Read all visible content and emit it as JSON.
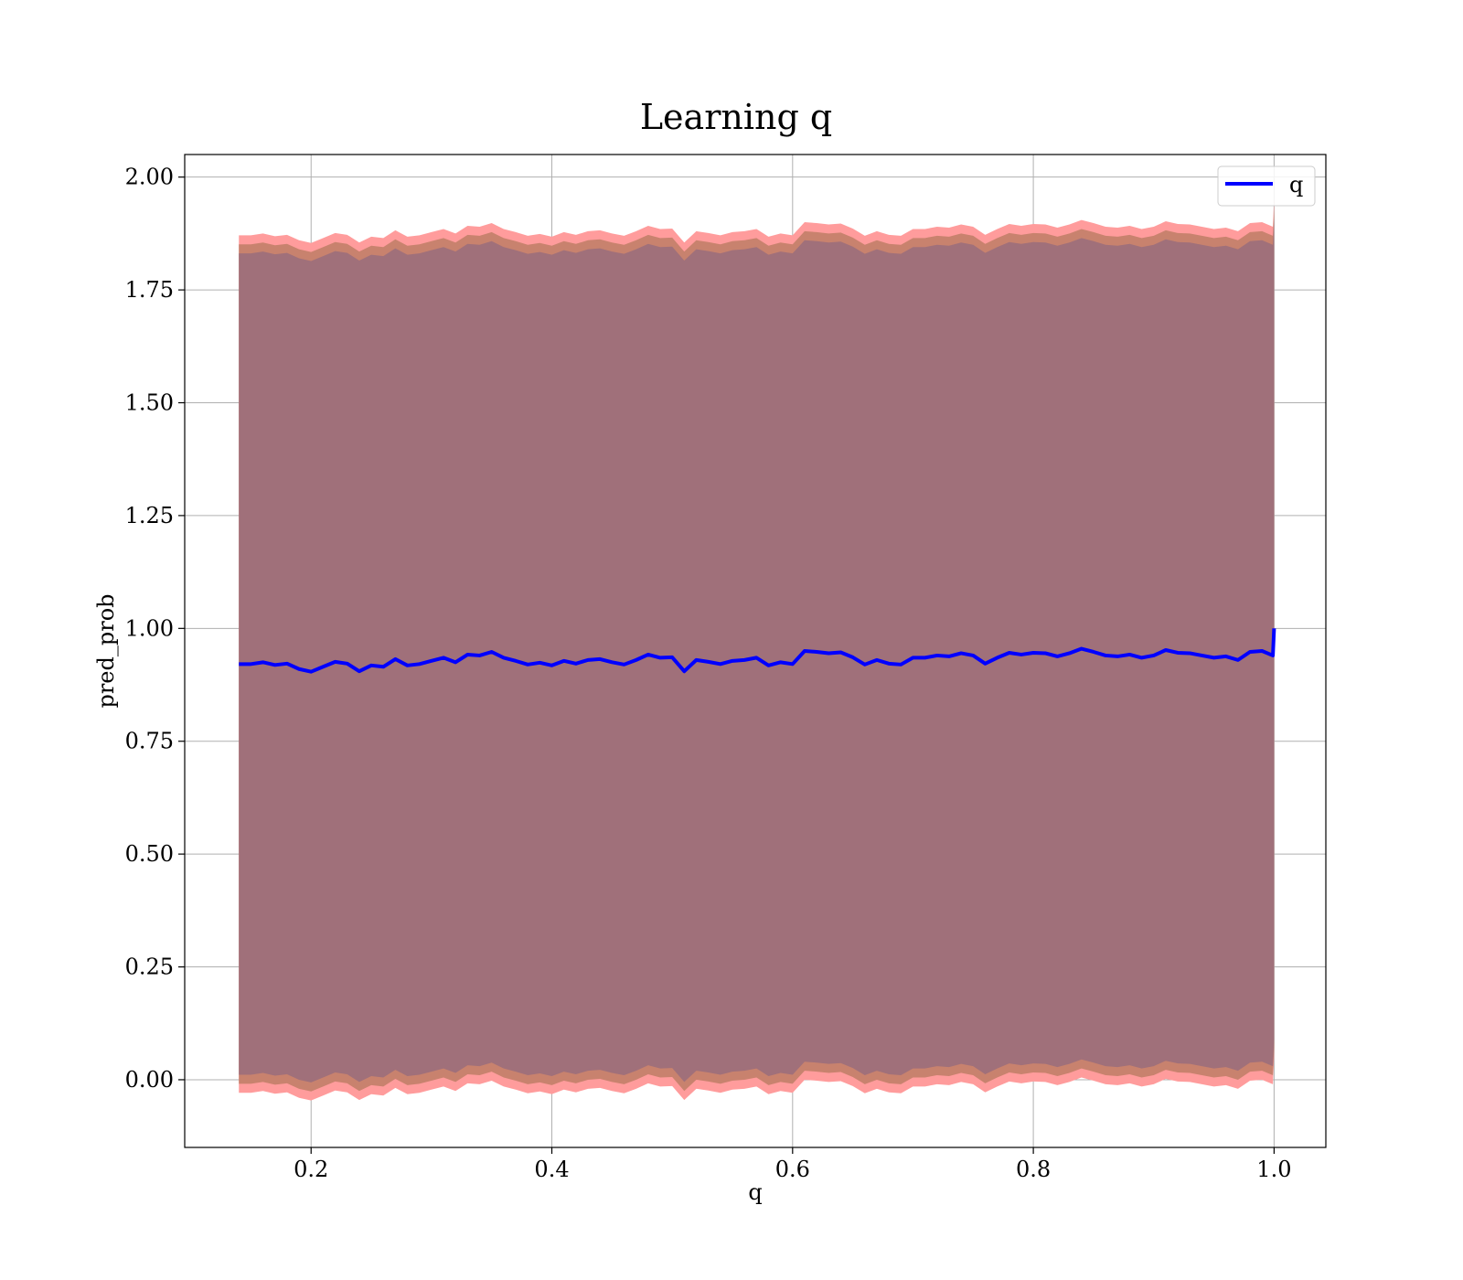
{
  "chart_data": {
    "type": "line",
    "title": "Learning q",
    "xlabel": "q",
    "ylabel": "pred_prob",
    "xlim": [
      0.095,
      1.043
    ],
    "ylim": [
      -0.15,
      2.05
    ],
    "x_ticks": [
      0.2,
      0.4,
      0.6,
      0.8,
      1.0
    ],
    "x_tick_labels": [
      "0.2",
      "0.4",
      "0.6",
      "0.8",
      "1.0"
    ],
    "y_ticks": [
      0.0,
      0.25,
      0.5,
      0.75,
      1.0,
      1.25,
      1.5,
      1.75,
      2.0
    ],
    "y_tick_labels": [
      "0.00",
      "0.25",
      "0.50",
      "0.75",
      "1.00",
      "1.25",
      "1.50",
      "1.75",
      "2.00"
    ],
    "grid": true,
    "legend": {
      "position": "top-right",
      "entries": [
        "q"
      ]
    },
    "colors": {
      "line": "#0000ff",
      "band_outer": "#ff9c9c",
      "band_mid": "#c8826e",
      "band_inner": "#a0707a",
      "grid": "#b0b0b0"
    },
    "bands": [
      {
        "role": "outer",
        "half_width": 0.95
      },
      {
        "role": "mid",
        "half_width": 0.93
      },
      {
        "role": "inner",
        "half_width": 0.91
      }
    ],
    "series": [
      {
        "name": "q",
        "x": [
          0.14,
          0.15,
          0.16,
          0.17,
          0.18,
          0.19,
          0.2,
          0.21,
          0.22,
          0.23,
          0.24,
          0.25,
          0.26,
          0.27,
          0.28,
          0.29,
          0.3,
          0.31,
          0.32,
          0.33,
          0.34,
          0.35,
          0.36,
          0.37,
          0.38,
          0.39,
          0.4,
          0.41,
          0.42,
          0.43,
          0.44,
          0.45,
          0.46,
          0.47,
          0.48,
          0.49,
          0.5,
          0.51,
          0.52,
          0.53,
          0.54,
          0.55,
          0.56,
          0.57,
          0.58,
          0.59,
          0.6,
          0.61,
          0.62,
          0.63,
          0.64,
          0.65,
          0.66,
          0.67,
          0.68,
          0.69,
          0.7,
          0.71,
          0.72,
          0.73,
          0.74,
          0.75,
          0.76,
          0.77,
          0.78,
          0.79,
          0.8,
          0.81,
          0.82,
          0.83,
          0.84,
          0.85,
          0.86,
          0.87,
          0.88,
          0.89,
          0.9,
          0.91,
          0.92,
          0.93,
          0.94,
          0.95,
          0.96,
          0.97,
          0.98,
          0.99,
          0.999,
          1.0
        ],
        "y": [
          0.921,
          0.921,
          0.925,
          0.919,
          0.922,
          0.91,
          0.904,
          0.915,
          0.926,
          0.922,
          0.905,
          0.918,
          0.915,
          0.932,
          0.918,
          0.921,
          0.928,
          0.935,
          0.925,
          0.942,
          0.94,
          0.948,
          0.935,
          0.928,
          0.92,
          0.924,
          0.918,
          0.928,
          0.922,
          0.93,
          0.932,
          0.925,
          0.92,
          0.93,
          0.942,
          0.935,
          0.936,
          0.905,
          0.93,
          0.926,
          0.921,
          0.928,
          0.93,
          0.935,
          0.918,
          0.925,
          0.921,
          0.95,
          0.948,
          0.945,
          0.947,
          0.936,
          0.92,
          0.93,
          0.922,
          0.92,
          0.935,
          0.935,
          0.94,
          0.938,
          0.945,
          0.94,
          0.922,
          0.935,
          0.946,
          0.942,
          0.946,
          0.945,
          0.938,
          0.945,
          0.955,
          0.948,
          0.94,
          0.938,
          0.942,
          0.935,
          0.94,
          0.952,
          0.946,
          0.945,
          0.94,
          0.935,
          0.938,
          0.93,
          0.948,
          0.95,
          0.94,
          1.0
        ]
      }
    ]
  }
}
